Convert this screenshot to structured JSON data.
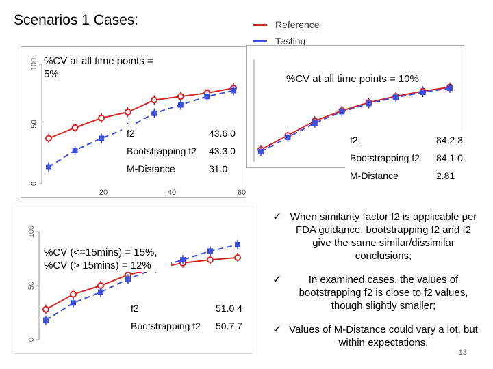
{
  "title": "Scenarios 1 Cases:",
  "legend": [
    {
      "label": "Reference",
      "color": "#d62728"
    },
    {
      "label": "Testing",
      "color": "#3b4fd8"
    }
  ],
  "charts": [
    {
      "caption": "%CV at all time points = 5%",
      "y_ticks": [
        "100",
        "50",
        "0"
      ],
      "x_ticks": [
        "20",
        "40",
        "60"
      ],
      "table": [
        {
          "label": "f2",
          "value": "43.6 0"
        },
        {
          "label": "Bootstrapping f2",
          "value": "43.3 0"
        },
        {
          "label": "M-Distance",
          "value": "31.0"
        }
      ]
    },
    {
      "caption": "%CV at all time points = 10%",
      "table": [
        {
          "label": "f2",
          "value": "84.2 3"
        },
        {
          "label": "Bootstrapping f2",
          "value": "84.1 0"
        },
        {
          "label": "M-Distance",
          "value": "2.81"
        }
      ]
    },
    {
      "caption": "%CV (<=15mins) = 15%, %CV (> 15mins) = 12%",
      "y_ticks": [
        "100",
        "50",
        "0"
      ],
      "table": [
        {
          "label": "f2",
          "value": "51.0 4"
        },
        {
          "label": "Bootstrapping f2",
          "value": "50.7 7"
        }
      ]
    }
  ],
  "bullets": [
    "When similarity factor f2 is applicable per FDA guidance, bootstrapping f2 and f2 give the same similar/dissimilar conclusions;",
    "In examined cases, the values of bootstrapping f2 is close to f2 values, though slightly smaller;",
    "Values of M-Distance could vary a lot, but within expectations."
  ],
  "page_number": "13",
  "chart_data": [
    {
      "type": "line",
      "ylim": [
        0,
        100
      ],
      "x": [
        1,
        2,
        3,
        4,
        5,
        6,
        7,
        8
      ],
      "series": [
        {
          "name": "Reference",
          "values": [
            38,
            47,
            55,
            60,
            70,
            73,
            76,
            80
          ]
        },
        {
          "name": "Testing",
          "values": [
            14,
            28,
            38,
            47,
            59,
            66,
            73,
            78
          ]
        }
      ]
    },
    {
      "type": "line",
      "ylim": [
        0,
        100
      ],
      "x": [
        1,
        2,
        3,
        4,
        5,
        6,
        7,
        8
      ],
      "series": [
        {
          "name": "Reference",
          "values": [
            12,
            26,
            40,
            50,
            58,
            64,
            69,
            73
          ]
        },
        {
          "name": "Testing",
          "values": [
            10,
            24,
            38,
            49,
            57,
            63,
            68,
            72
          ]
        }
      ]
    },
    {
      "type": "line",
      "ylim": [
        0,
        100
      ],
      "x": [
        1,
        2,
        3,
        4,
        5,
        6,
        7,
        8
      ],
      "series": [
        {
          "name": "Reference",
          "values": [
            28,
            42,
            50,
            60,
            66,
            71,
            74,
            76
          ]
        },
        {
          "name": "Testing",
          "values": [
            18,
            34,
            44,
            56,
            66,
            74,
            82,
            88
          ]
        }
      ]
    }
  ]
}
